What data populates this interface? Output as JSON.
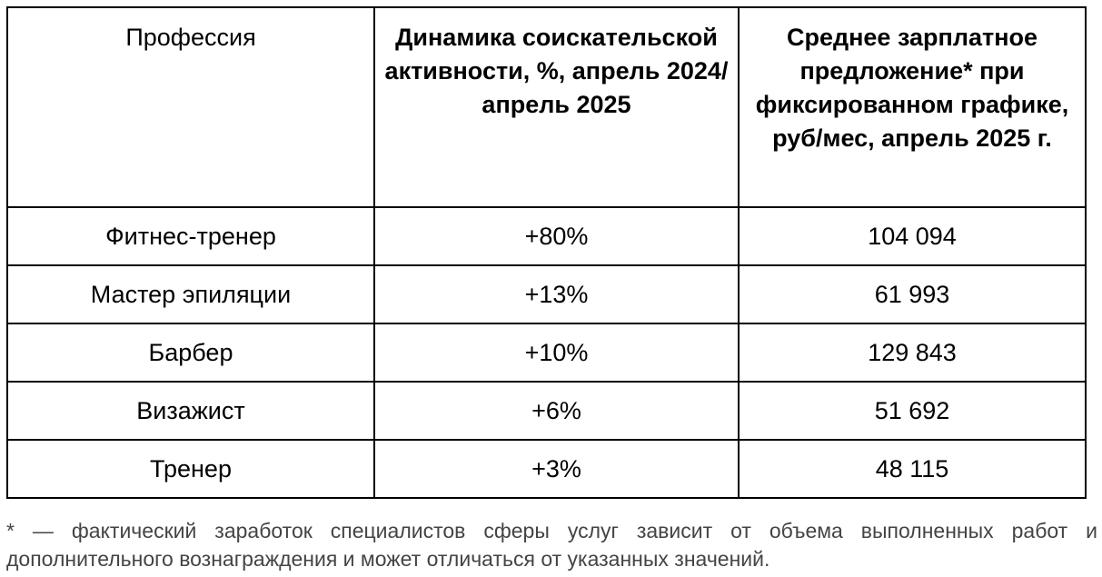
{
  "table": {
    "headers": {
      "profession": "Профессия",
      "dynamics": "Динамика соискательской активности, %, апрель 2024/апрель 2025",
      "salary": "Среднее зарплатное предложение* при фиксированном графике, руб/мес, апрель 2025 г."
    },
    "rows": [
      {
        "profession": "Фитнес-тренер",
        "dynamics": "+80%",
        "salary": "104 094"
      },
      {
        "profession": "Мастер эпиляции",
        "dynamics": "+13%",
        "salary": "61 993"
      },
      {
        "profession": "Барбер",
        "dynamics": "+10%",
        "salary": "129 843"
      },
      {
        "profession": "Визажист",
        "dynamics": "+6%",
        "salary": "51 692"
      },
      {
        "profession": "Тренер",
        "dynamics": "+3%",
        "salary": "48 115"
      }
    ]
  },
  "footnote": "* — фактический заработок специалистов сферы услуг зависит от объема выполненных работ и дополнительного вознаграждения и может отличаться от указанных значений."
}
